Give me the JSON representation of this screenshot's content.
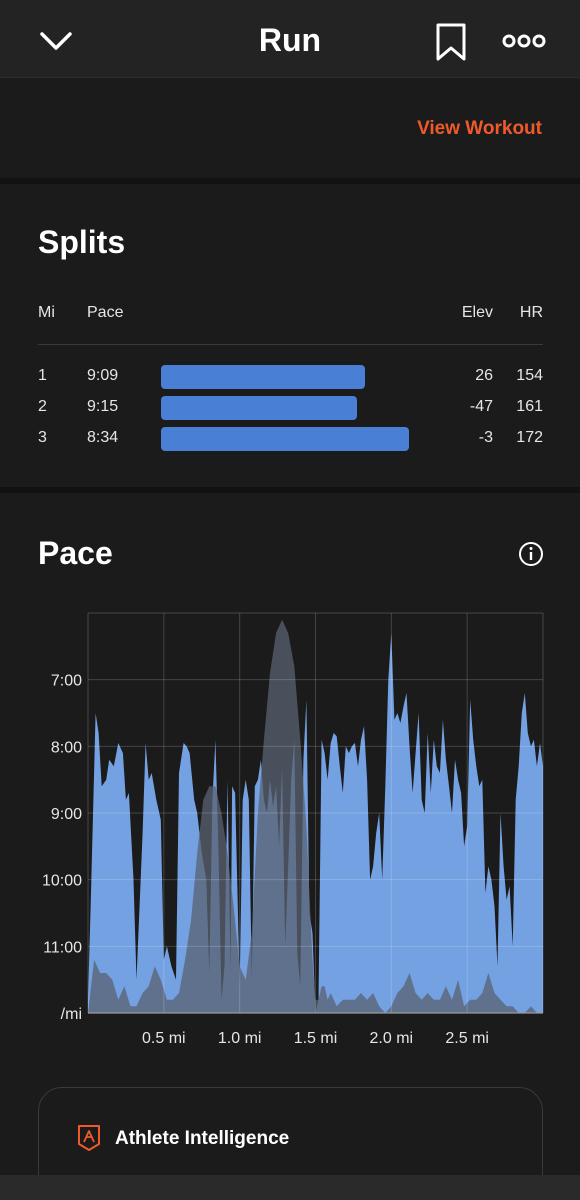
{
  "header": {
    "title": "Run"
  },
  "workout": {
    "view_label": "View Workout",
    "accent": "#f05a2b"
  },
  "splits": {
    "title": "Splits",
    "columns": {
      "mi": "Mi",
      "pace": "Pace",
      "elev": "Elev",
      "hr": "HR"
    },
    "rows": [
      {
        "mi": "1",
        "pace": "9:09",
        "pace_seconds": 549,
        "elev": "26",
        "hr": "154"
      },
      {
        "mi": "2",
        "pace": "9:15",
        "pace_seconds": 555,
        "elev": "-47",
        "hr": "161"
      },
      {
        "mi": "3",
        "pace": "8:34",
        "pace_seconds": 514,
        "elev": "-3",
        "hr": "172"
      }
    ],
    "bar_color": "#4a7fd6"
  },
  "pace": {
    "title": "Pace"
  },
  "chart_data": {
    "type": "area",
    "xlabel": "",
    "ylabel": "",
    "x_ticks": [
      "0.5 mi",
      "1.0 mi",
      "1.5 mi",
      "2.0 mi",
      "2.5 mi"
    ],
    "y_ticks": [
      "7:00",
      "8:00",
      "9:00",
      "10:00",
      "11:00",
      "/mi"
    ],
    "xlim": [
      0,
      3.0
    ],
    "ylim_minutes_per_mile": [
      12,
      6
    ],
    "grid": true,
    "series": [
      {
        "color": "#74a1e2",
        "x": [
          0.0,
          0.02,
          0.05,
          0.07,
          0.09,
          0.12,
          0.14,
          0.17,
          0.2,
          0.23,
          0.25,
          0.27,
          0.3,
          0.32,
          0.36,
          0.38,
          0.4,
          0.42,
          0.45,
          0.48,
          0.5,
          0.52,
          0.55,
          0.58,
          0.6,
          0.63,
          0.65,
          0.67,
          0.7,
          0.72,
          0.75,
          0.78,
          0.8,
          0.82,
          0.84,
          0.86,
          0.88,
          0.9,
          0.92,
          0.94,
          0.95,
          0.97,
          1.0,
          1.02,
          1.04,
          1.06,
          1.08,
          1.1,
          1.12,
          1.14,
          1.16,
          1.18,
          1.2,
          1.22,
          1.24,
          1.26,
          1.28,
          1.3,
          1.32,
          1.34,
          1.36,
          1.38,
          1.4,
          1.42,
          1.44,
          1.46,
          1.48,
          1.5,
          1.52,
          1.54,
          1.56,
          1.58,
          1.6,
          1.62,
          1.64,
          1.66,
          1.68,
          1.7,
          1.72,
          1.74,
          1.76,
          1.78,
          1.8,
          1.82,
          1.84,
          1.86,
          1.88,
          1.9,
          1.92,
          1.94,
          1.96,
          1.98,
          2.0,
          2.02,
          2.04,
          2.06,
          2.08,
          2.1,
          2.12,
          2.14,
          2.16,
          2.18,
          2.2,
          2.22,
          2.24,
          2.26,
          2.28,
          2.3,
          2.32,
          2.34,
          2.36,
          2.38,
          2.4,
          2.42,
          2.44,
          2.46,
          2.48,
          2.5,
          2.52,
          2.54,
          2.56,
          2.58,
          2.6,
          2.62,
          2.64,
          2.66,
          2.68,
          2.7,
          2.72,
          2.74,
          2.76,
          2.78,
          2.8,
          2.82,
          2.84,
          2.86,
          2.88,
          2.9,
          2.92,
          2.94,
          2.96,
          2.98,
          3.0
        ],
        "y": [
          11.8,
          10.2,
          7.5,
          7.8,
          8.6,
          8.5,
          8.2,
          8.3,
          7.95,
          8.1,
          8.8,
          8.7,
          10.0,
          11.5,
          9.3,
          7.95,
          8.5,
          8.4,
          8.8,
          9.1,
          11.2,
          11.0,
          11.3,
          11.5,
          8.4,
          7.95,
          8.0,
          8.1,
          8.8,
          9.0,
          9.6,
          10.0,
          11.4,
          8.8,
          7.9,
          9.5,
          11.8,
          11.3,
          8.5,
          11.4,
          8.6,
          8.7,
          11.6,
          8.8,
          8.5,
          8.8,
          11.5,
          8.6,
          8.5,
          8.2,
          8.8,
          9.0,
          8.5,
          8.9,
          8.6,
          9.5,
          8.3,
          11.0,
          9.8,
          8.5,
          7.9,
          11.1,
          11.6,
          8.2,
          7.3,
          10.5,
          10.8,
          12.0,
          11.8,
          7.9,
          8.1,
          8.5,
          7.95,
          7.8,
          7.85,
          8.3,
          8.7,
          8.0,
          8.1,
          8.0,
          7.95,
          8.3,
          7.9,
          7.7,
          8.5,
          10.0,
          9.8,
          9.3,
          9.0,
          10.0,
          8.6,
          7.0,
          6.3,
          7.6,
          7.5,
          7.65,
          7.4,
          7.2,
          8.0,
          8.7,
          8.1,
          7.5,
          8.8,
          9.0,
          7.8,
          8.7,
          7.9,
          8.3,
          8.4,
          7.6,
          8.2,
          8.6,
          9.0,
          8.2,
          8.5,
          8.7,
          9.5,
          9.2,
          7.3,
          7.9,
          8.3,
          8.6,
          8.5,
          10.2,
          9.8,
          10.0,
          10.4,
          11.3,
          9.0,
          9.8,
          10.3,
          10.1,
          11.0,
          8.8,
          8.3,
          7.5,
          7.2,
          7.8,
          8.0,
          7.9,
          8.3,
          7.95,
          8.3
        ]
      },
      {
        "color": "#5a6172",
        "x": [
          0.0,
          0.04,
          0.08,
          0.12,
          0.16,
          0.2,
          0.24,
          0.28,
          0.32,
          0.36,
          0.4,
          0.44,
          0.48,
          0.52,
          0.56,
          0.6,
          0.64,
          0.68,
          0.72,
          0.76,
          0.8,
          0.84,
          0.88,
          0.92,
          0.96,
          1.0,
          1.04,
          1.08,
          1.12,
          1.16,
          1.2,
          1.24,
          1.28,
          1.32,
          1.36,
          1.4,
          1.44,
          1.46,
          1.48,
          1.5,
          1.52,
          1.54,
          1.56,
          1.58,
          1.6,
          1.64,
          1.68,
          1.72,
          1.76,
          1.8,
          1.84,
          1.88,
          1.92,
          1.96,
          2.0,
          2.04,
          2.08,
          2.12,
          2.16,
          2.2,
          2.24,
          2.28,
          2.32,
          2.36,
          2.4,
          2.44,
          2.48,
          2.52,
          2.56,
          2.6,
          2.64,
          2.68,
          2.72,
          2.76,
          2.8,
          2.84,
          2.88,
          2.92,
          2.96,
          3.0
        ],
        "y": [
          12.0,
          11.2,
          11.4,
          11.4,
          11.5,
          11.8,
          11.6,
          11.9,
          11.9,
          11.7,
          11.6,
          11.3,
          11.5,
          11.8,
          11.8,
          11.7,
          11.2,
          10.6,
          9.6,
          8.8,
          8.6,
          8.6,
          9.0,
          9.6,
          10.4,
          11.3,
          11.5,
          10.8,
          9.0,
          7.9,
          6.9,
          6.3,
          6.1,
          6.3,
          6.8,
          7.9,
          9.2,
          10.2,
          11.2,
          11.8,
          11.8,
          11.6,
          11.6,
          11.8,
          11.7,
          11.9,
          11.8,
          11.8,
          11.8,
          11.7,
          11.8,
          11.7,
          11.9,
          12.0,
          11.9,
          11.7,
          11.6,
          11.4,
          11.7,
          11.8,
          11.7,
          11.8,
          11.8,
          11.6,
          11.8,
          11.5,
          11.9,
          11.8,
          11.8,
          11.7,
          11.4,
          11.7,
          11.8,
          11.9,
          11.9,
          12.0,
          12.0,
          11.9,
          12.0,
          12.0
        ]
      }
    ]
  },
  "athlete_intelligence": {
    "label": "Athlete Intelligence"
  }
}
